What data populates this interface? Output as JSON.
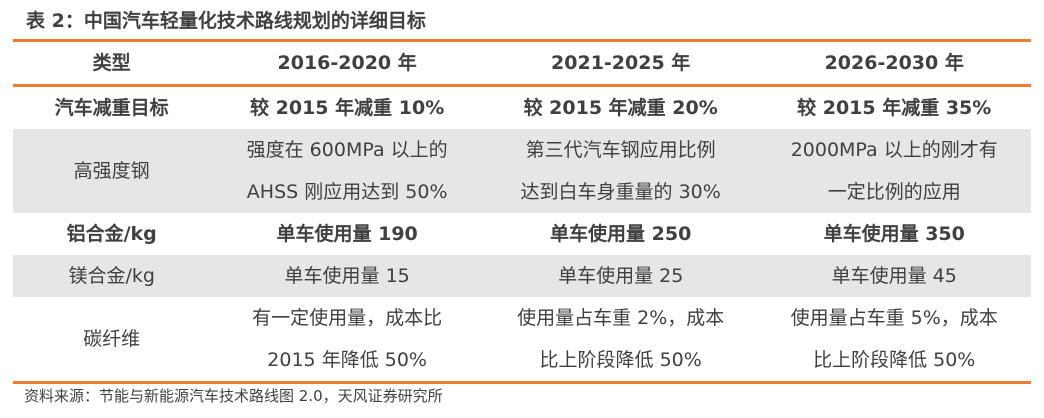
{
  "title": "表 2：中国汽车轻量化技术路线规划的详细目标",
  "headers": [
    "类型",
    "2016-2020 年",
    "2021-2025 年",
    "2026-2030 年"
  ],
  "rows": [
    {
      "type": "汽车减重目标",
      "cells": [
        "较 2015 年减重 10%",
        "较 2015 年减重 20%",
        "较 2015 年减重 35%"
      ]
    },
    {
      "type": "高强度钢",
      "cells": [
        [
          "强度在 600MPa 以上的",
          "AHSS 刚应用达到 50%"
        ],
        [
          "第三代汽车钢应用比例",
          "达到白车身重量的 30%"
        ],
        [
          "2000MPa 以上的刚才有",
          "一定比例的应用"
        ]
      ]
    },
    {
      "type": "铝合金/kg",
      "cells": [
        "单车使用量 190",
        "单车使用量 250",
        "单车使用量 350"
      ]
    },
    {
      "type": "镁合金/kg",
      "cells": [
        "单车使用量 15",
        "单车使用量 25",
        "单车使用量 45"
      ]
    },
    {
      "type": "碳纤维",
      "cells": [
        [
          "有一定使用量，成本比",
          "2015 年降低 50%"
        ],
        [
          "使用量占车重 2%，成本",
          "比上阶段降低 50%"
        ],
        [
          "使用量占车重 5%，成本",
          "比上阶段降低 50%"
        ]
      ]
    }
  ],
  "source": "资料来源：节能与新能源汽车技术路线图 2.0，天风证券研究所",
  "colors": {
    "accent": "#ED7D31",
    "stripe": "#e6e6e6"
  }
}
